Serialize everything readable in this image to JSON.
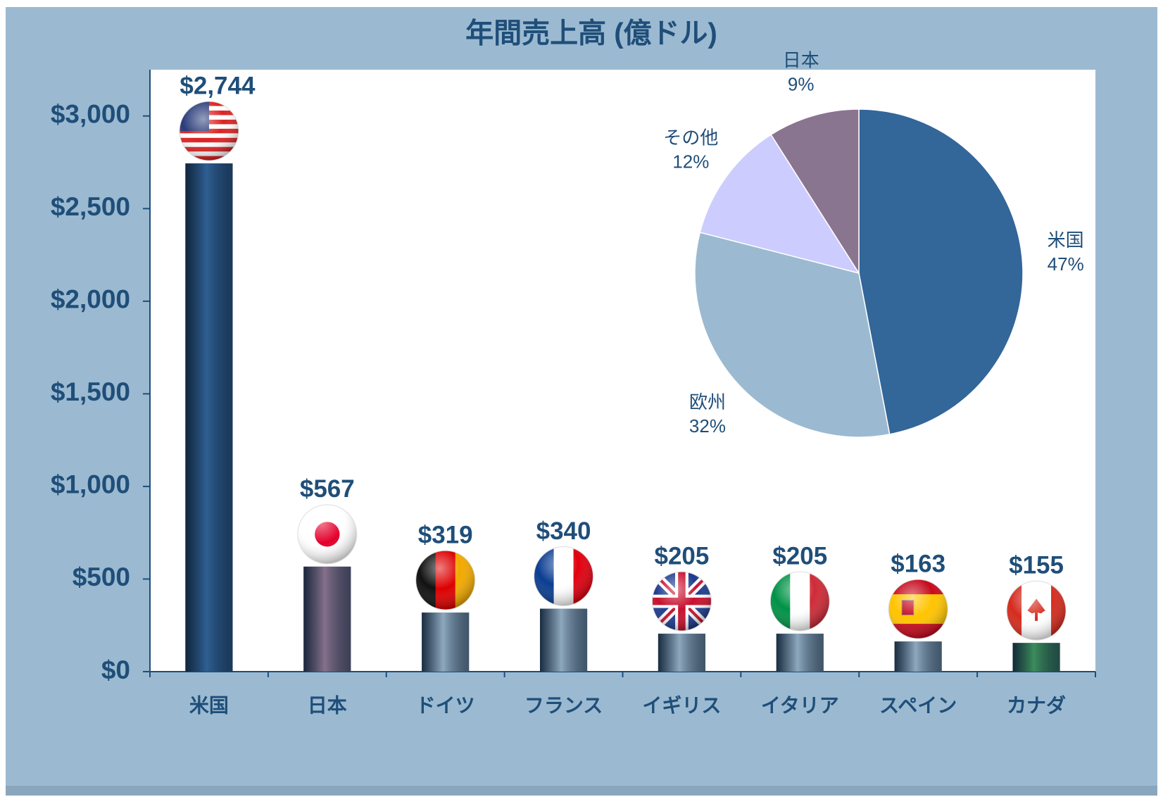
{
  "chart_data": [
    {
      "type": "bar",
      "title": "年間売上高 (億ドル)",
      "categories": [
        "米国",
        "日本",
        "ドイツ",
        "フランス",
        "イギリス",
        "イタリア",
        "スペイン",
        "カナダ"
      ],
      "values": [
        2744,
        567,
        319,
        340,
        205,
        205,
        163,
        155
      ],
      "value_labels": [
        "$2,744",
        "$567",
        "$319",
        "$340",
        "$205",
        "$205",
        "$163",
        "$155"
      ],
      "colors": [
        "#2f5f93",
        "#85718c",
        "#8ea8be",
        "#8ea8be",
        "#8ea8be",
        "#8ea8be",
        "#8ea8be",
        "#3c8c5c"
      ],
      "ylim": [
        0,
        3250
      ],
      "yticks": [
        {
          "value": 0,
          "label": "$0"
        },
        {
          "value": 500,
          "label": "$500"
        },
        {
          "value": 1000,
          "label": "$1,000"
        },
        {
          "value": 1500,
          "label": "$1,500"
        },
        {
          "value": 2000,
          "label": "$2,000"
        },
        {
          "value": 2500,
          "label": "$2,500"
        },
        {
          "value": 3000,
          "label": "$3,000"
        }
      ]
    },
    {
      "type": "pie",
      "categories": [
        "米国",
        "欧州",
        "その他",
        "日本"
      ],
      "values": [
        47,
        32,
        12,
        9
      ],
      "value_labels": [
        "47%",
        "32%",
        "12%",
        "9%"
      ],
      "colors": [
        "#336699",
        "#9bbad1",
        "#ccccff",
        "#8a7590"
      ]
    }
  ]
}
